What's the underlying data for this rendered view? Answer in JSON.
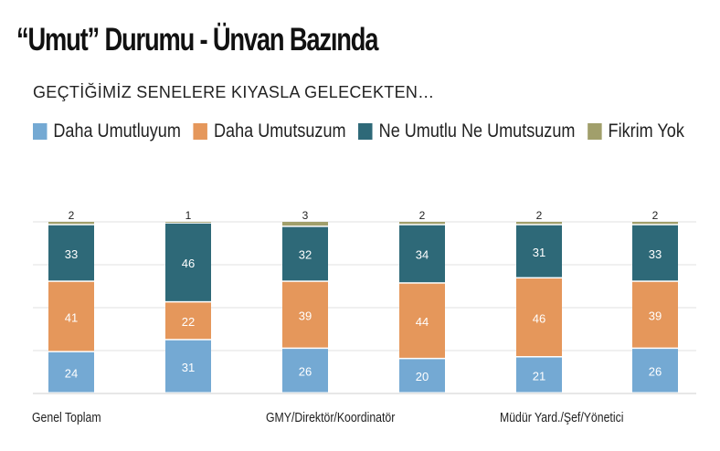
{
  "header": {
    "title": "“Umut” Durumu - Ünvan Bazında",
    "subtitle": "GEÇTİĞİMİZ SENELERE KIYASLA GELECEKTEN…"
  },
  "chart_data": {
    "type": "bar",
    "stacked": true,
    "categories": [
      "Genel Toplam",
      "",
      "GMY/Direktör/Koordinatör",
      "",
      "Müdür Yard./Şef/Yönetici",
      ""
    ],
    "series": [
      {
        "name": "Daha Umutluyum",
        "color": "#74a9d3",
        "values": [
          24,
          31,
          26,
          20,
          21,
          26
        ]
      },
      {
        "name": "Daha Umutsuzum",
        "color": "#e5975b",
        "values": [
          41,
          22,
          39,
          44,
          46,
          39
        ]
      },
      {
        "name": "Ne Umutlu Ne Umutsuzum",
        "color": "#2e6978",
        "values": [
          33,
          46,
          32,
          34,
          31,
          33
        ]
      },
      {
        "name": "Fikrim Yok",
        "color": "#a19f6b",
        "values": [
          2,
          1,
          3,
          2,
          2,
          2
        ]
      }
    ],
    "ylim": [
      0,
      100
    ],
    "grid": true,
    "legend_position": "top"
  }
}
